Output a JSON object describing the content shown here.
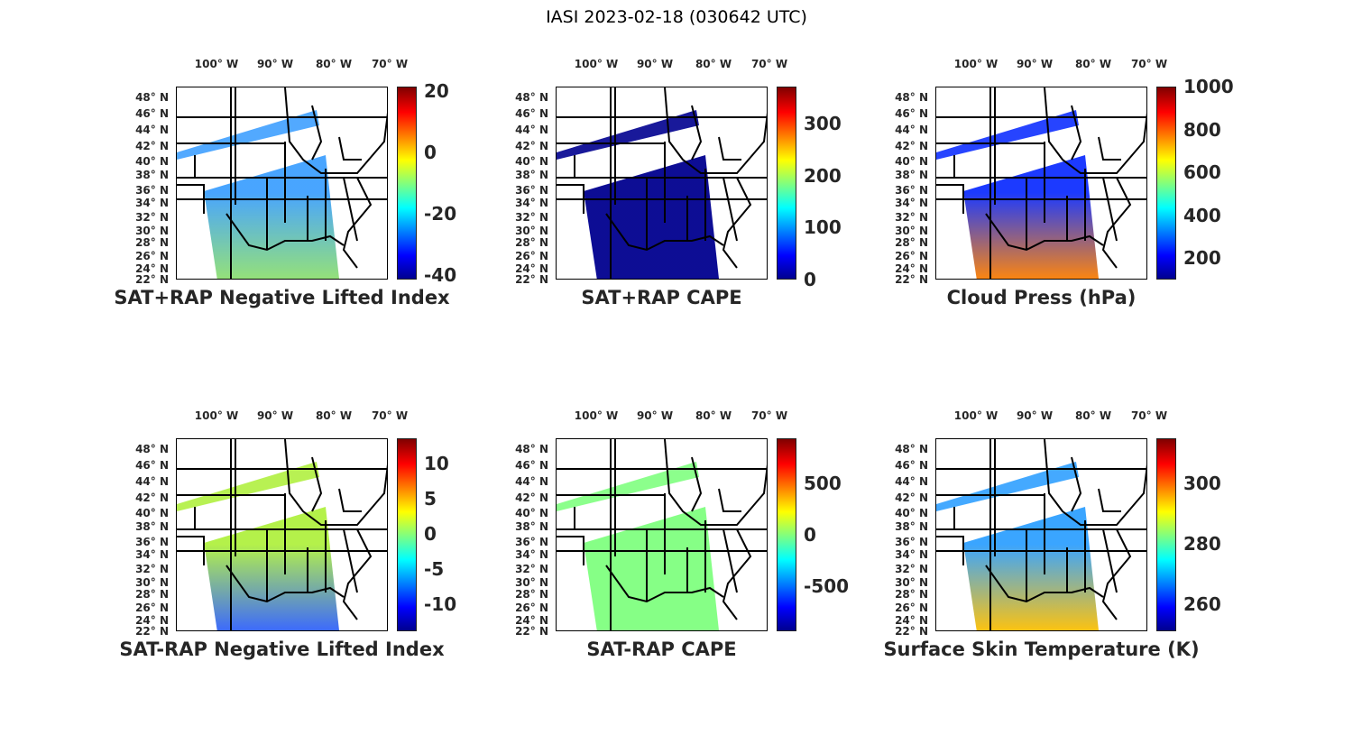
{
  "title": "IASI 2023-02-18 (030642 UTC)",
  "lon_labels": [
    "100° W",
    "90° W",
    "80° W",
    "70° W"
  ],
  "lat_labels": [
    "48° N",
    "46° N",
    "44° N",
    "42° N",
    "40° N",
    "38° N",
    "36° N",
    "34° N",
    "32° N",
    "30° N",
    "28° N",
    "26° N",
    "24° N",
    "22° N"
  ],
  "panels": [
    {
      "title": "SAT+RAP Negative Lifted Index",
      "colorbar": {
        "min": -41.5,
        "max": 21.5,
        "ticks": [
          -40,
          -20,
          0,
          20
        ]
      },
      "swath_color": "#3fa0ff",
      "swath_color2": "#90e070"
    },
    {
      "title": "SAT+RAP CAPE",
      "colorbar": {
        "min": 0,
        "max": 371,
        "ticks": [
          0,
          100,
          200,
          300
        ]
      },
      "swath_color": "#00008f",
      "swath_color2": "#00008f"
    },
    {
      "title": "Cloud Press (hPa)",
      "colorbar": {
        "min": 99,
        "max": 1000,
        "ticks": [
          200,
          400,
          600,
          800,
          1000
        ]
      },
      "swath_color": "#1030ff",
      "swath_color2": "#ff8000"
    },
    {
      "title": "SAT-RAP Negative Lifted Index",
      "colorbar": {
        "min": -13.8,
        "max": 13.6,
        "ticks": [
          -10,
          -5,
          0,
          5,
          10
        ]
      },
      "swath_color": "#b0f040",
      "swath_color2": "#3060ff"
    },
    {
      "title": "SAT-RAP CAPE",
      "colorbar": {
        "min": -939,
        "max": 939,
        "ticks": [
          -500,
          0,
          500
        ]
      },
      "swath_color": "#80ff80",
      "swath_color2": "#80ff80"
    },
    {
      "title": "Surface Skin Temperature (K)",
      "colorbar": {
        "min": 251,
        "max": 315,
        "ticks": [
          260,
          280,
          300
        ]
      },
      "swath_color": "#30a0ff",
      "swath_color2": "#ffc000"
    }
  ]
}
